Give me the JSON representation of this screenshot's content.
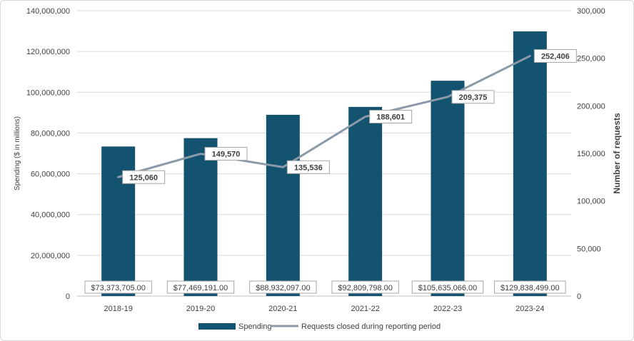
{
  "chart_data": {
    "type": "bar",
    "categories": [
      "2018-19",
      "2019-20",
      "2020-21",
      "2021-22",
      "2022-23",
      "2023-24"
    ],
    "series": [
      {
        "name": "Spending",
        "type": "bar",
        "axis": "left",
        "values": [
          73373705,
          77469191,
          88932097,
          92809798,
          105635066,
          129838499
        ],
        "labels": [
          "$73,373,705.00",
          "$77,469,191.00",
          "$88,932,097.00",
          "$92,809,798.00",
          "$105,635,066.00",
          "$129,838,499.00"
        ],
        "color": "#13536f"
      },
      {
        "name": "Requests closed during reporting period",
        "type": "line",
        "axis": "right",
        "values": [
          125060,
          149570,
          135536,
          188601,
          209375,
          252406
        ],
        "labels": [
          "125,060",
          "149,570",
          "135,536",
          "188,601",
          "209,375",
          "252,406"
        ],
        "color": "#8a9aa8"
      }
    ],
    "ylabel_left": "Spending ($ in millions)",
    "ylabel_right": "Number of requests",
    "ylim_left": [
      0,
      140000000
    ],
    "ylim_right": [
      0,
      300000
    ],
    "yticks_left": [
      "0",
      "20,000,000",
      "40,000,000",
      "60,000,000",
      "80,000,000",
      "100,000,000",
      "120,000,000",
      "140,000,000"
    ],
    "yticks_right": [
      "0",
      "50,000",
      "100,000",
      "150,000",
      "200,000",
      "250,000",
      "300,000"
    ],
    "grid": true,
    "legend_position": "bottom"
  }
}
